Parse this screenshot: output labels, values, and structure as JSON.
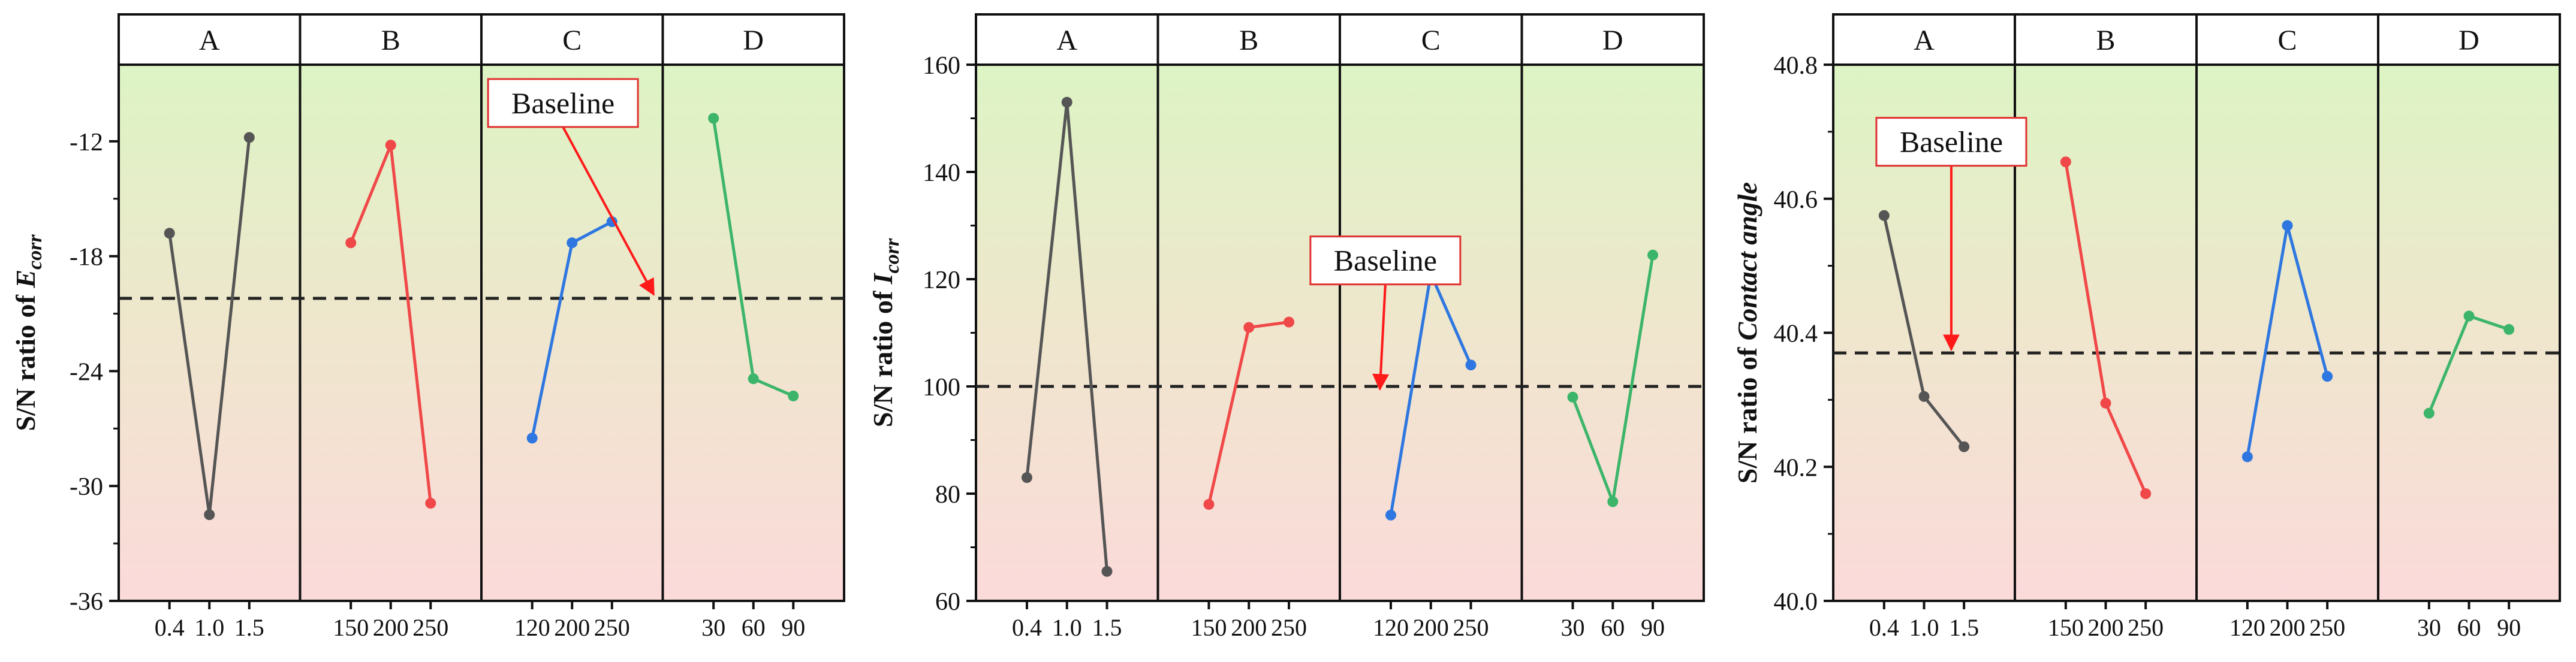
{
  "colors": {
    "top_band": "#ddf4c4",
    "bottom_band": "#fbdada",
    "baseline_line": "#222222",
    "arrow": "#ff1a1a",
    "callout_border": "#e03030",
    "level_A": "#555555",
    "level_B": "#f04848",
    "level_C": "#2e77e0",
    "level_D": "#3cb56a"
  },
  "chart_data": [
    {
      "type": "line",
      "ylabel_prefix": "S/N ratio of ",
      "ylabel_main": "E",
      "ylabel_sub": "corr",
      "ylim": [
        -36,
        -8
      ],
      "yticks": [
        -12,
        -18,
        -24,
        -30,
        -36
      ],
      "tick_labels": [
        "-12",
        "-18",
        "-24",
        "-30",
        "-36"
      ],
      "baseline_value": -20.2,
      "annotation": {
        "text": "Baseline",
        "box_x_units": 2.45,
        "box_y": -10.0,
        "arrow_x_units": 2.95,
        "arrow_y": -20.0
      },
      "factors": [
        {
          "name": "A",
          "color_key": "level_A",
          "categories": [
            "0.4",
            "1.0",
            "1.5"
          ],
          "values": [
            -16.8,
            -31.5,
            -11.8
          ]
        },
        {
          "name": "B",
          "color_key": "level_B",
          "categories": [
            "150",
            "200",
            "250"
          ],
          "values": [
            -17.3,
            -12.2,
            -30.9
          ]
        },
        {
          "name": "C",
          "color_key": "level_C",
          "categories": [
            "120",
            "200",
            "250"
          ],
          "values": [
            -27.5,
            -17.3,
            -16.2
          ]
        },
        {
          "name": "D",
          "color_key": "level_D",
          "categories": [
            "30",
            "60",
            "90"
          ],
          "values": [
            -10.8,
            -24.4,
            -25.3
          ]
        }
      ]
    },
    {
      "type": "line",
      "ylabel_prefix": "S/N ratio of ",
      "ylabel_main": "I",
      "ylabel_sub": "corr",
      "ylim": [
        60,
        160
      ],
      "yticks": [
        60,
        80,
        100,
        120,
        140,
        160
      ],
      "tick_labels": [
        "60",
        "80",
        "100",
        "120",
        "140",
        "160"
      ],
      "baseline_value": 100,
      "annotation": {
        "text": "Baseline",
        "box_x_units": 2.25,
        "box_y": 123.5,
        "arrow_x_units": 2.22,
        "arrow_y": 99.5
      },
      "factors": [
        {
          "name": "A",
          "color_key": "level_A",
          "categories": [
            "0.4",
            "1.0",
            "1.5"
          ],
          "values": [
            83,
            153,
            65.5
          ]
        },
        {
          "name": "B",
          "color_key": "level_B",
          "categories": [
            "150",
            "200",
            "250"
          ],
          "values": [
            78,
            111,
            112
          ]
        },
        {
          "name": "C",
          "color_key": "level_C",
          "categories": [
            "120",
            "200",
            "250"
          ],
          "values": [
            76,
            121,
            104
          ]
        },
        {
          "name": "D",
          "color_key": "level_D",
          "categories": [
            "30",
            "60",
            "90"
          ],
          "values": [
            98,
            78.5,
            124.5
          ]
        }
      ]
    },
    {
      "type": "line",
      "ylabel_prefix": "S/N ratio of ",
      "ylabel_main": "Contact angle",
      "ylabel_sub": "",
      "ylim": [
        40.0,
        40.8
      ],
      "yticks": [
        40.0,
        40.2,
        40.4,
        40.6,
        40.8
      ],
      "tick_labels": [
        "40.0",
        "40.2",
        "40.4",
        "40.6",
        "40.8"
      ],
      "baseline_value": 40.37,
      "annotation": {
        "text": "Baseline",
        "box_x_units": 0.65,
        "box_y": 40.685,
        "arrow_x_units": 0.65,
        "arrow_y": 40.375
      },
      "factors": [
        {
          "name": "A",
          "color_key": "level_A",
          "categories": [
            "0.4",
            "1.0",
            "1.5"
          ],
          "values": [
            40.575,
            40.305,
            40.23
          ]
        },
        {
          "name": "B",
          "color_key": "level_B",
          "categories": [
            "150",
            "200",
            "250"
          ],
          "values": [
            40.655,
            40.295,
            40.16
          ]
        },
        {
          "name": "C",
          "color_key": "level_C",
          "categories": [
            "120",
            "200",
            "250"
          ],
          "values": [
            40.215,
            40.56,
            40.335
          ]
        },
        {
          "name": "D",
          "color_key": "level_D",
          "categories": [
            "30",
            "60",
            "90"
          ],
          "values": [
            40.28,
            40.425,
            40.405
          ]
        }
      ]
    }
  ]
}
